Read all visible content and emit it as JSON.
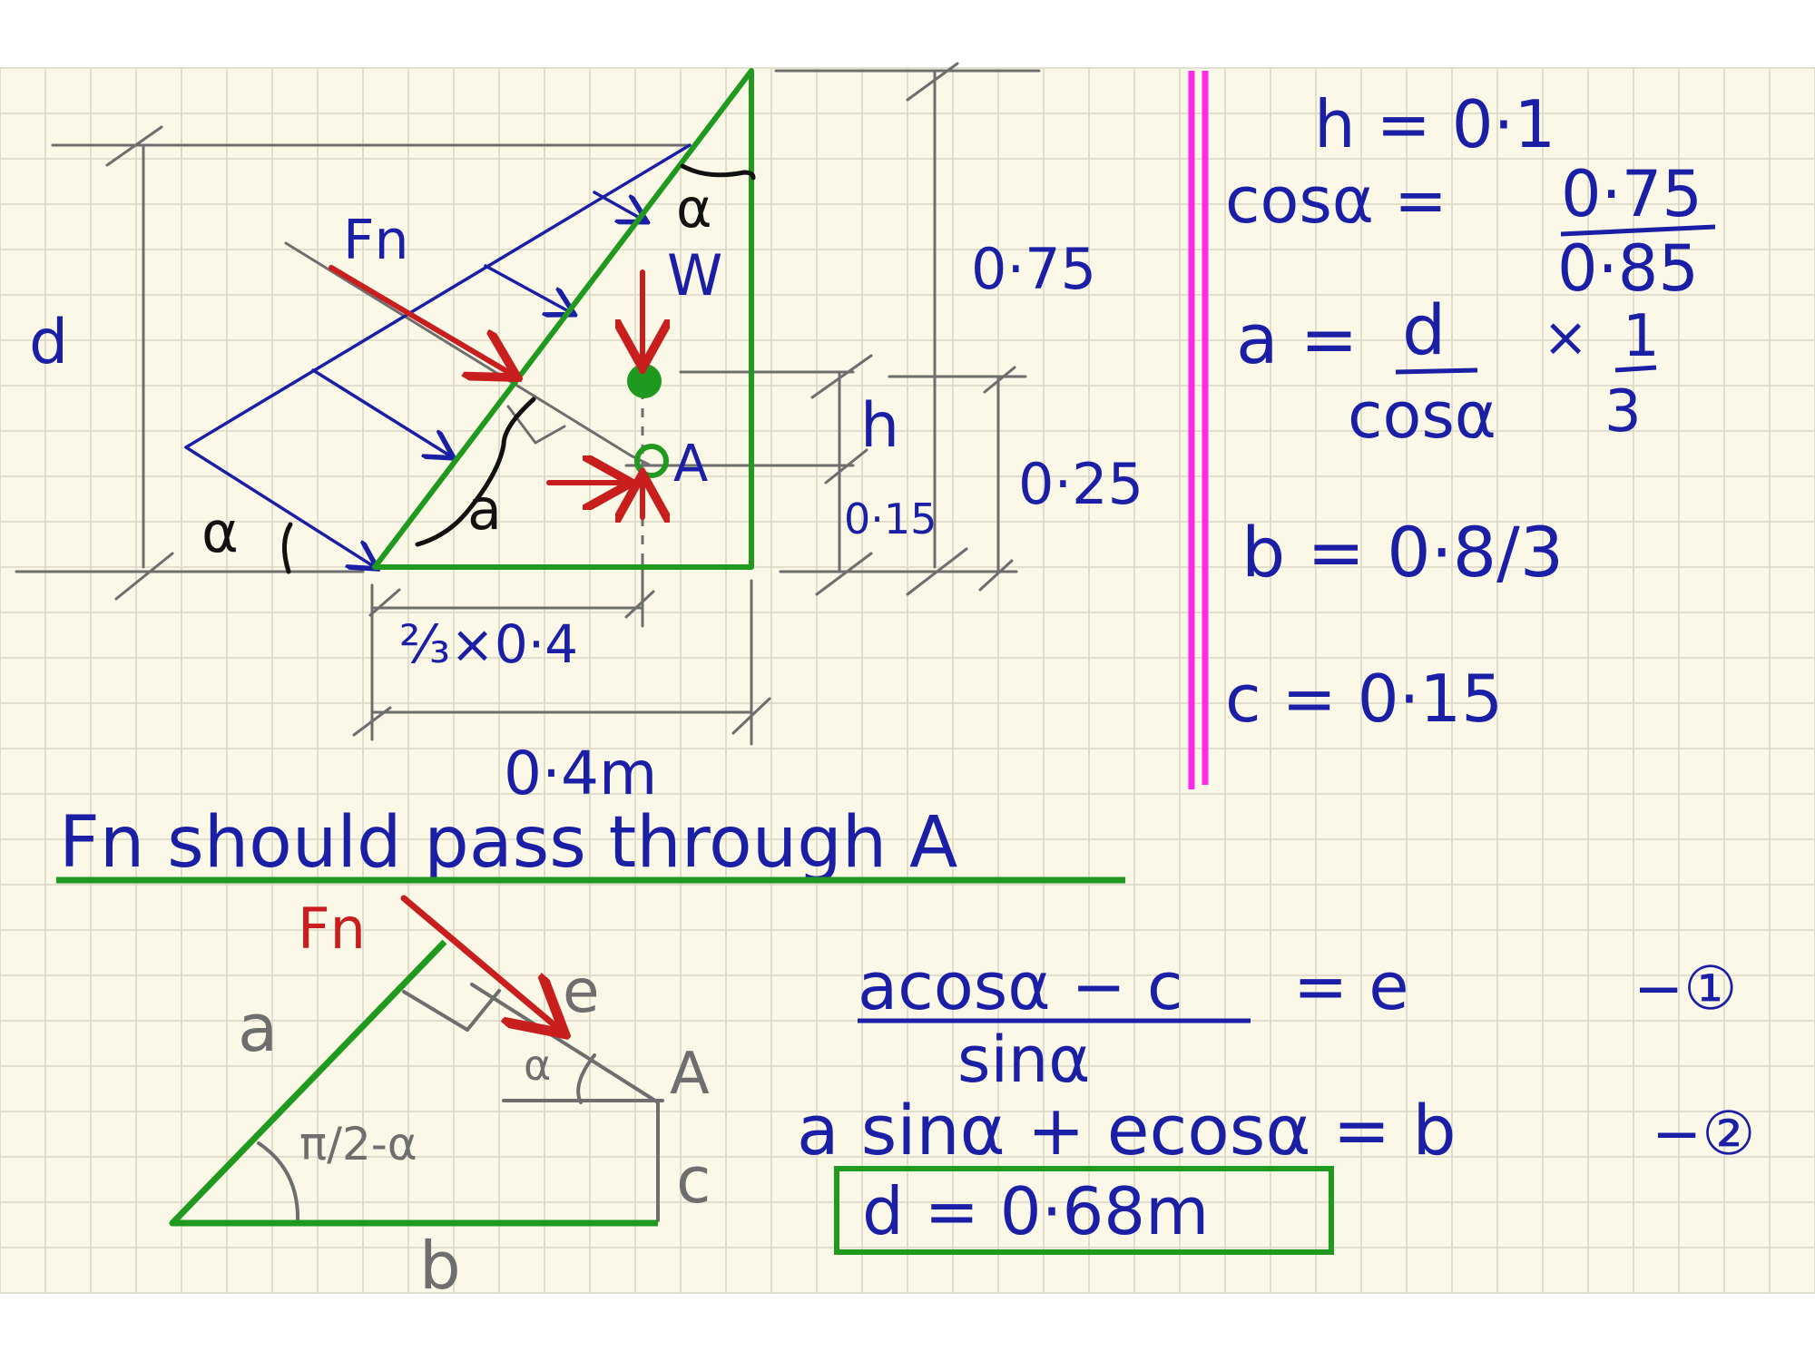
{
  "colors": {
    "paper": "#fbf8e8",
    "grid": "#d9d6c6",
    "ink_blue": "#1a1fa6",
    "ink_red": "#c81e1e",
    "ink_green": "#1f9a1f",
    "ink_gray": "#6e6e6e",
    "ink_black": "#111111",
    "divider": "#ff2ae6"
  },
  "top_diagram": {
    "fn_label": "Fn",
    "alpha_top": "α",
    "alpha_bottom": "α",
    "w_label": "W",
    "a_point": "A",
    "d_label": "d",
    "a_label": "a",
    "h_label": "h",
    "dim_075": "0·75",
    "dim_025": "0·25",
    "dim_015": "0·15",
    "dim_two_thirds": "⅔×0·4",
    "dim_04m": "0·4m"
  },
  "statement": "Fn should pass through A",
  "bottom_diagram": {
    "fn_label": "Fn",
    "a_label": "a",
    "e_label": "e",
    "alpha_label": "α",
    "a_point": "A",
    "angle_label": "π/2-α",
    "c_label": "c",
    "b_label": "b"
  },
  "givens": {
    "h": "h = 0·1",
    "cos_lhs": "cosα =",
    "cos_num": "0·75",
    "cos_den": "0·85",
    "a_lhs": "a =",
    "a_num": "d",
    "a_den": "cosα",
    "a_times": "×",
    "a_third_num": "1",
    "a_third_den": "3",
    "b": "b = 0·8/3",
    "c": "c = 0·15"
  },
  "equations": {
    "eq1_num": "acosα − c",
    "eq1_den": "sinα",
    "eq1_rhs": "= e",
    "eq1_tag": "−①",
    "eq2": "a sinα + ecosα = b",
    "eq2_tag": "−②",
    "answer": "d = 0·68m"
  }
}
